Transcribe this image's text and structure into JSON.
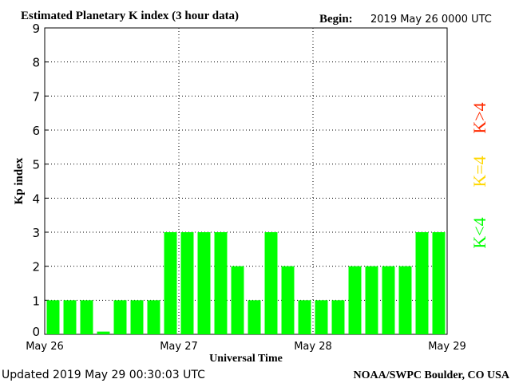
{
  "header": {
    "title": "Estimated Planetary K index (3 hour data)",
    "begin_label": "Begin:",
    "begin_value": "2019 May 26 0000 UTC"
  },
  "footer": {
    "updated": "Updated 2019 May 29 00:30:03 UTC",
    "source": "NOAA/SWPC Boulder, CO USA"
  },
  "legend": {
    "items": [
      {
        "label": "K<4",
        "color": "#00ff00"
      },
      {
        "label": "K=4",
        "color": "#ffd700"
      },
      {
        "label": "K>4",
        "color": "#ff2a00"
      }
    ]
  },
  "chart_data": {
    "type": "bar",
    "title": "Estimated Planetary K index (3 hour data)",
    "xlabel": "Universal Time",
    "ylabel": "Kp index",
    "ylim": [
      0,
      9
    ],
    "yticks": [
      "0",
      "1",
      "2",
      "3",
      "4",
      "5",
      "6",
      "7",
      "8",
      "9"
    ],
    "xticks": [
      "May 26",
      "May 27",
      "May 28",
      "May 29"
    ],
    "grid": true,
    "bar_color": "#00ff00",
    "values": [
      1,
      1,
      1,
      0.08,
      1,
      1,
      1,
      3,
      3,
      3,
      3,
      2,
      1,
      3,
      2,
      1,
      1,
      1,
      2,
      2,
      2,
      2,
      3,
      3
    ]
  }
}
